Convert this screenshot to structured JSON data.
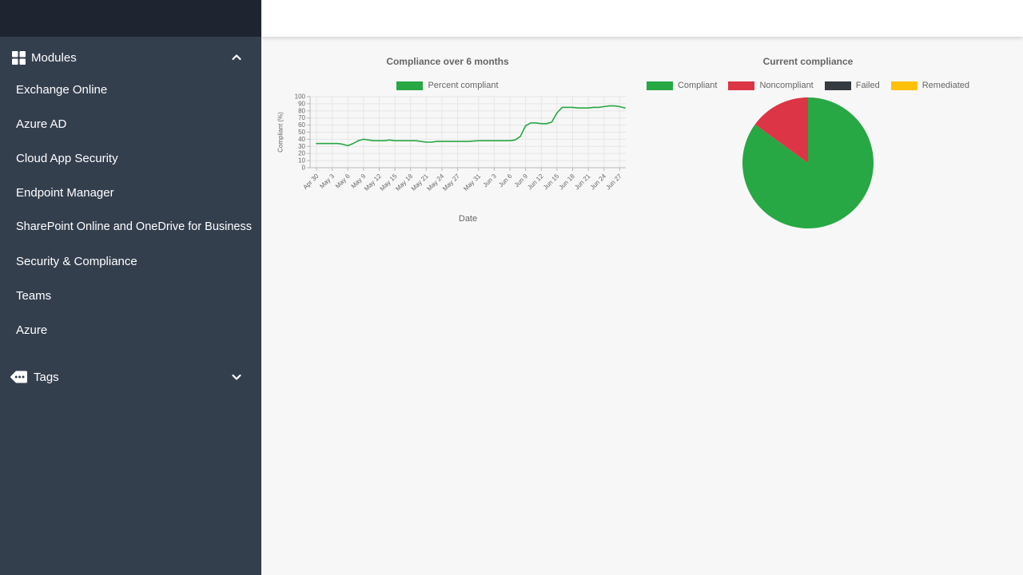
{
  "sidebar": {
    "modules": {
      "label": "Modules",
      "items": [
        "Exchange Online",
        "Azure AD",
        "Cloud App Security",
        "Endpoint Manager",
        "SharePoint Online and OneDrive for Business",
        "Security & Compliance",
        "Teams",
        "Azure"
      ]
    },
    "tags": {
      "label": "Tags"
    }
  },
  "colors": {
    "sidebar_bg": "#343f4e",
    "sidebar_header_bg": "#1e2430",
    "main_bg": "#f7f7f7",
    "compliant_green": "#28a745",
    "noncompliant_red": "#dc3545",
    "failed_dark": "#343a40",
    "remediated_yellow": "#ffc107",
    "grid": "#e6e6e6",
    "axis": "#b8b8b8",
    "chart_text": "#666666"
  },
  "chart_data": [
    {
      "type": "line",
      "title": "Compliance over 6 months",
      "xlabel": "Date",
      "ylabel": "Compliant (%)",
      "ylim": [
        0,
        100
      ],
      "y_ticks": [
        0,
        10,
        20,
        30,
        40,
        50,
        60,
        70,
        80,
        90,
        100
      ],
      "grid": true,
      "legend_position": "top",
      "x_unit": "days since Apr 30",
      "x_ticks": [
        {
          "label": "Apr 30",
          "day": 0
        },
        {
          "label": "May 3",
          "day": 3
        },
        {
          "label": "May 6",
          "day": 6
        },
        {
          "label": "May 9",
          "day": 9
        },
        {
          "label": "May 12",
          "day": 12
        },
        {
          "label": "May 15",
          "day": 15
        },
        {
          "label": "May 18",
          "day": 18
        },
        {
          "label": "May 21",
          "day": 21
        },
        {
          "label": "May 24",
          "day": 24
        },
        {
          "label": "May 27",
          "day": 27
        },
        {
          "label": "May 31",
          "day": 31
        },
        {
          "label": "Jun 3",
          "day": 34
        },
        {
          "label": "Jun 6",
          "day": 37
        },
        {
          "label": "Jun 9",
          "day": 40
        },
        {
          "label": "Jun 12",
          "day": 43
        },
        {
          "label": "Jun 15",
          "day": 46
        },
        {
          "label": "Jun 18",
          "day": 49
        },
        {
          "label": "Jun 21",
          "day": 52
        },
        {
          "label": "Jun 24",
          "day": 55
        },
        {
          "label": "Jun 27",
          "day": 58
        }
      ],
      "series": [
        {
          "name": "Percent compliant",
          "color": "#28a745",
          "points": [
            [
              0,
              34
            ],
            [
              2,
              34
            ],
            [
              4,
              34
            ],
            [
              5,
              33
            ],
            [
              6,
              31
            ],
            [
              7,
              34
            ],
            [
              8,
              38
            ],
            [
              9,
              40
            ],
            [
              10,
              39
            ],
            [
              11,
              38
            ],
            [
              13,
              38
            ],
            [
              14,
              39
            ],
            [
              15,
              38
            ],
            [
              17,
              38
            ],
            [
              19,
              38
            ],
            [
              21,
              36
            ],
            [
              22,
              36
            ],
            [
              23,
              37
            ],
            [
              25,
              37
            ],
            [
              27,
              37
            ],
            [
              29,
              37
            ],
            [
              31,
              38
            ],
            [
              33,
              38
            ],
            [
              35,
              38
            ],
            [
              37,
              38
            ],
            [
              38,
              39
            ],
            [
              39,
              44
            ],
            [
              40,
              59
            ],
            [
              41,
              63
            ],
            [
              42,
              63
            ],
            [
              43,
              62
            ],
            [
              44,
              62
            ],
            [
              45,
              64
            ],
            [
              46,
              77
            ],
            [
              47,
              85
            ],
            [
              48,
              85
            ],
            [
              49,
              85
            ],
            [
              50,
              84
            ],
            [
              52,
              84
            ],
            [
              53,
              85
            ],
            [
              54,
              85
            ],
            [
              55,
              86
            ],
            [
              56,
              87
            ],
            [
              57,
              87
            ],
            [
              58,
              86
            ],
            [
              59,
              84
            ]
          ]
        }
      ]
    },
    {
      "type": "pie",
      "title": "Current compliance",
      "legend_position": "top",
      "slices": [
        {
          "label": "Compliant",
          "value": 85,
          "color": "#28a745"
        },
        {
          "label": "Noncompliant",
          "value": 15,
          "color": "#dc3545"
        },
        {
          "label": "Failed",
          "value": 0,
          "color": "#343a40"
        },
        {
          "label": "Remediated",
          "value": 0,
          "color": "#ffc107"
        }
      ]
    }
  ]
}
